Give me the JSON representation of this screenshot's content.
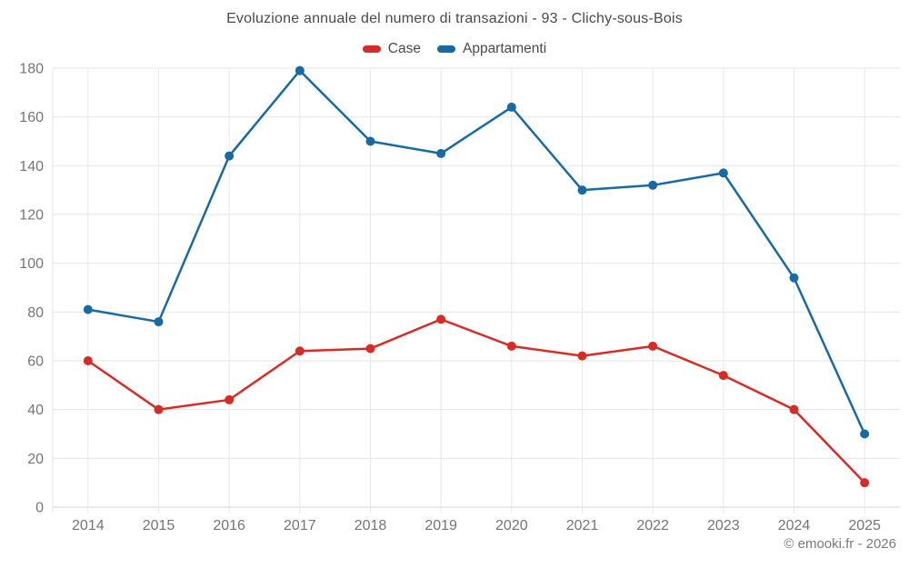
{
  "chart_data": {
    "type": "line",
    "title": "Evoluzione annuale del numero di transazioni - 93 - Clichy-sous-Bois",
    "categories": [
      "2014",
      "2015",
      "2016",
      "2017",
      "2018",
      "2019",
      "2020",
      "2021",
      "2022",
      "2023",
      "2024",
      "2025"
    ],
    "series": [
      {
        "name": "Case",
        "color": "#d92b26",
        "values": [
          60,
          40,
          44,
          64,
          65,
          77,
          66,
          62,
          66,
          54,
          40,
          10
        ]
      },
      {
        "name": "Appartamenti",
        "color": "#176aa3",
        "values": [
          81,
          76,
          144,
          179,
          150,
          145,
          164,
          130,
          132,
          137,
          94,
          30
        ]
      }
    ],
    "xlabel": "",
    "ylabel": "",
    "ylim": [
      0,
      180
    ],
    "ytick_step": 20,
    "yticks": [
      0,
      20,
      40,
      60,
      80,
      100,
      120,
      140,
      160,
      180
    ],
    "grid": true,
    "legend_position": "top",
    "marker": "circle",
    "axis_label_color": "#757575",
    "gridline_color": "#e6e6e6",
    "axisline_color": "#d4d4d4"
  },
  "footer": {
    "copyright": "© emooki.fr - 2026"
  }
}
